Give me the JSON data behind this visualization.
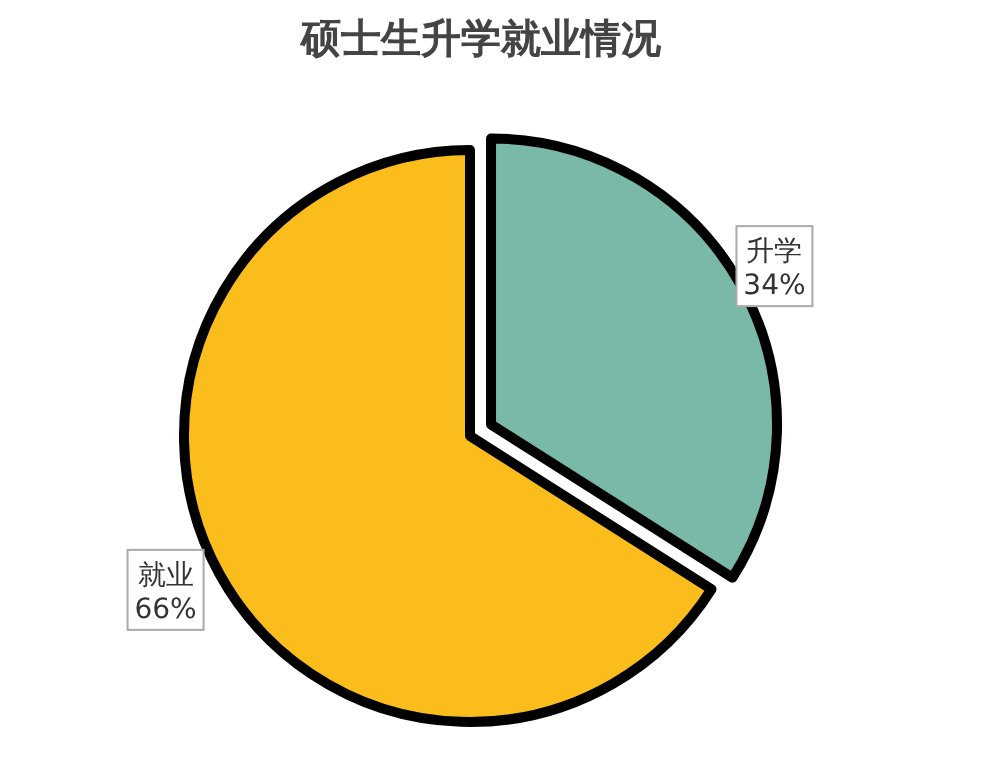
{
  "chart_data": {
    "type": "pie",
    "title": "硕士生升学就业情况",
    "categories": [
      "升学",
      "就业"
    ],
    "values": [
      34,
      66
    ],
    "value_labels": [
      "34%",
      "66%"
    ],
    "colors": [
      "#7ab8a8",
      "#fbbd1b"
    ]
  }
}
